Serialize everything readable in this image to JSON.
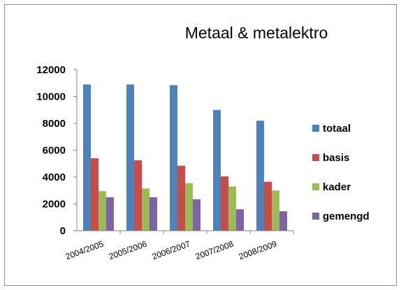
{
  "chart_data": {
    "type": "bar",
    "title": "Metaal & metalektro",
    "categories": [
      "2004/2005",
      "2005/2006",
      "2006/2007",
      "2007/2008",
      "2008/2009"
    ],
    "y_ticks": [
      "0",
      "2000",
      "4000",
      "6000",
      "8000",
      "10000",
      "12000"
    ],
    "ylim": [
      0,
      12000
    ],
    "grid": false,
    "legend_position": "right",
    "series": [
      {
        "name": "totaal",
        "color": "#4F81BD",
        "values": [
          10900,
          10900,
          10850,
          9000,
          8200
        ]
      },
      {
        "name": "basis",
        "color": "#C0504D",
        "values": [
          5400,
          5250,
          4850,
          4050,
          3650
        ]
      },
      {
        "name": "kader",
        "color": "#9BBB59",
        "values": [
          2950,
          3150,
          3550,
          3300,
          3000
        ]
      },
      {
        "name": "gemengd",
        "color": "#8064A2",
        "values": [
          2500,
          2500,
          2350,
          1600,
          1450
        ]
      }
    ]
  }
}
